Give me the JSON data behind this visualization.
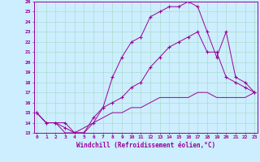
{
  "xlabel": "Windchill (Refroidissement éolien,°C)",
  "hours": [
    0,
    1,
    2,
    3,
    4,
    5,
    6,
    7,
    8,
    9,
    10,
    11,
    12,
    13,
    14,
    15,
    16,
    17,
    18,
    19,
    20,
    21,
    22,
    23
  ],
  "line_max": [
    15.0,
    14.0,
    14.0,
    14.0,
    13.0,
    13.0,
    14.0,
    15.5,
    18.5,
    20.5,
    22.0,
    22.5,
    24.5,
    25.0,
    25.5,
    25.5,
    26.0,
    25.5,
    23.0,
    20.5,
    23.0,
    18.5,
    18.0,
    17.0
  ],
  "line_avg": [
    15.0,
    14.0,
    14.0,
    13.5,
    13.0,
    13.0,
    14.5,
    15.5,
    16.0,
    16.5,
    17.5,
    18.0,
    19.5,
    20.5,
    21.5,
    22.0,
    22.5,
    23.0,
    21.0,
    21.0,
    18.5,
    18.0,
    17.5,
    17.0
  ],
  "line_min": [
    15.0,
    14.0,
    14.0,
    13.0,
    13.0,
    13.5,
    14.0,
    14.5,
    15.0,
    15.0,
    15.5,
    15.5,
    16.0,
    16.5,
    16.5,
    16.5,
    16.5,
    17.0,
    17.0,
    16.5,
    16.5,
    16.5,
    16.5,
    17.0
  ],
  "line_color": "#990099",
  "bg_color": "#cceeff",
  "grid_color": "#aaddcc",
  "ylim": [
    13,
    26
  ],
  "xlim": [
    0,
    23
  ]
}
